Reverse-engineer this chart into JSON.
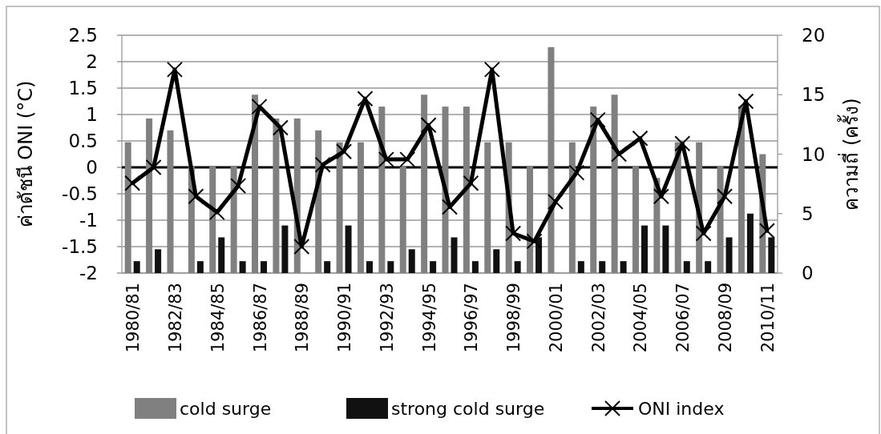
{
  "chart_data": {
    "type": "bar",
    "ylabel": "ค่าดัชนี ONI (°C)",
    "y2label": "ความถี่ (ครั้ง)",
    "categories": [
      "1980/81",
      null,
      "1982/83",
      null,
      "1984/85",
      null,
      "1986/87",
      null,
      "1988/89",
      null,
      "1990/91",
      null,
      "1992/93",
      null,
      "1994/95",
      null,
      "1996/97",
      null,
      "1998/99",
      null,
      "2000/01",
      null,
      "2002/03",
      null,
      "2004/05",
      null,
      "2006/07",
      null,
      "2008/09",
      null,
      "2010/11"
    ],
    "series": [
      {
        "name": "cold surge",
        "axis": "y2",
        "color": "#808080",
        "values": [
          11,
          13,
          12,
          9,
          9,
          9,
          15,
          13,
          13,
          12,
          11,
          11,
          14,
          9,
          15,
          14,
          14,
          11,
          11,
          9,
          19,
          11,
          14,
          15,
          9,
          8,
          11,
          11,
          9,
          14,
          10
        ]
      },
      {
        "name": "strong cold surge",
        "axis": "y2",
        "color": "#111111",
        "values": [
          1,
          2,
          0,
          1,
          3,
          1,
          1,
          4,
          0,
          1,
          4,
          1,
          1,
          2,
          1,
          3,
          1,
          2,
          1,
          3,
          0,
          1,
          1,
          1,
          4,
          4,
          1,
          1,
          3,
          5,
          3
        ]
      },
      {
        "name": "ONI index",
        "type": "line",
        "axis": "y",
        "color": "#000000",
        "marker": "cross",
        "line_style": "solid",
        "values": [
          -0.3,
          0,
          1.85,
          -0.55,
          -0.85,
          -0.35,
          1.15,
          0.75,
          -1.5,
          0.05,
          0.3,
          1.3,
          0.15,
          0.15,
          0.8,
          -0.75,
          -0.3,
          1.85,
          -1.25,
          -1.4,
          -0.65,
          -0.1,
          0.9,
          0.25,
          0.55,
          -0.55,
          0.45,
          -1.25,
          -0.55,
          1.25,
          -1.2
        ]
      }
    ],
    "ylim": [
      -2,
      2.5
    ],
    "yticks": [
      -2,
      -1.5,
      -1,
      -0.5,
      0,
      0.5,
      1,
      1.5,
      2,
      2.5
    ],
    "y2lim": [
      0,
      20
    ],
    "y2ticks": [
      0,
      5,
      10,
      15,
      20
    ],
    "ref_lines": [
      {
        "axis": "y",
        "value": 0,
        "color": "#000000"
      }
    ],
    "grid": "y",
    "legend": "bottom"
  }
}
